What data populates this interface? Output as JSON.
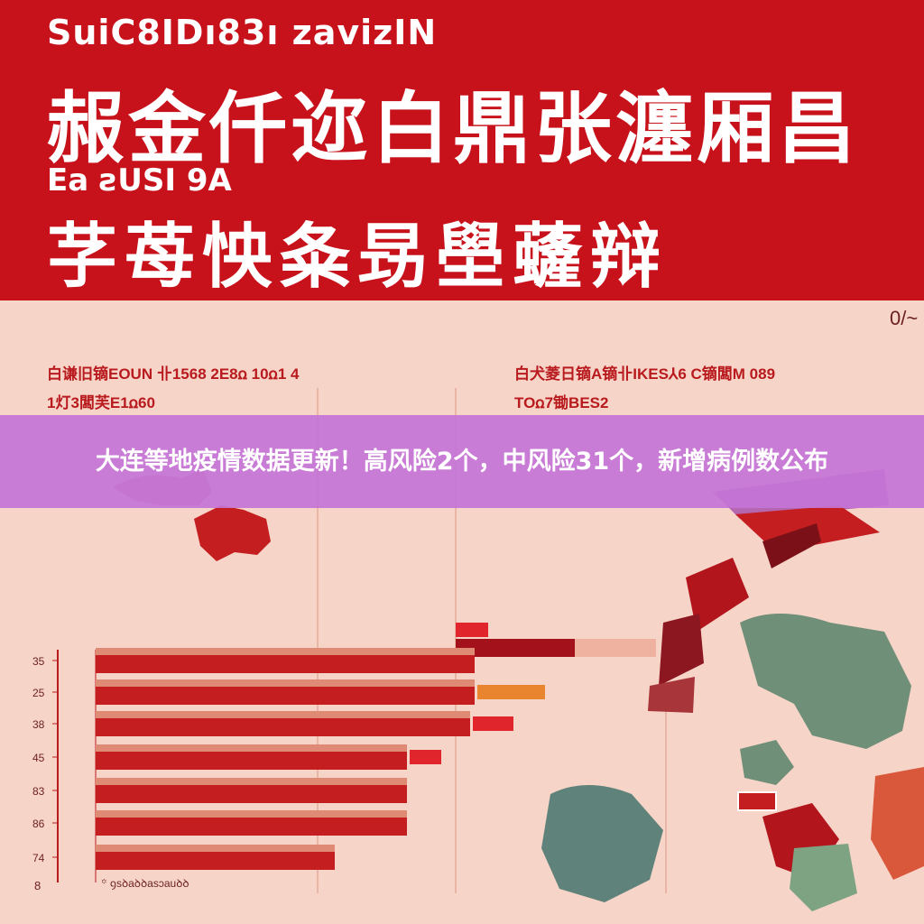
{
  "header": {
    "line1": "SuiC8IDı83ı zavizIN",
    "line2": "赧金仟迩白鼎张瀍厢昌",
    "line3": "Ea ƨUSI 9A",
    "line4": "芓苺怏夈昮壆虄辩"
  },
  "left_panel": {
    "subtitle1": "白谦旧镝EOUN 卝1568 2E8ꭥ 10ꭥ1 4",
    "subtitle2": "1灯3闆芙E1ꭥ60"
  },
  "right_panel": {
    "subtitle1": "白犬菱日镝A镝卝IKES⅄6 C镝闆M 089",
    "subtitle2": "TOꭥ7锄BES2"
  },
  "corner_code": "0/~",
  "bottom_note": "꙳ ꝯsꝺaꝺꝺasɔauꝺꝺ",
  "banner": {
    "title": "大连等地疫情数据更新！高风险2个，中风险31个，新增病例数公布"
  },
  "colors": {
    "header_red": "#c8121b",
    "background": "#f7d4c8",
    "bar_main": "#c41e20",
    "bar_stripe": "#de8a74",
    "banner": "#c474d6",
    "map_teal": "#6f8f78"
  },
  "chart_data": {
    "type": "bar",
    "orientation": "horizontal",
    "categories": [
      "35",
      "25",
      "38",
      "45",
      "83",
      "86",
      "74"
    ],
    "values": [
      84,
      84,
      83,
      69,
      69,
      69,
      53
    ],
    "secondary_values": [
      null,
      15,
      9,
      7,
      null,
      null,
      null
    ],
    "xlim": [
      0,
      100
    ],
    "axis_bottom_label": "8"
  }
}
